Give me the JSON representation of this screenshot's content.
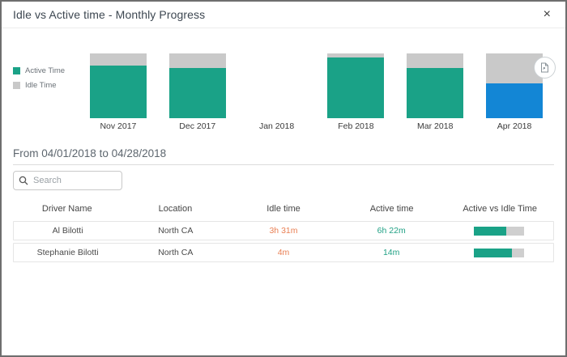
{
  "dialog": {
    "title": "Idle vs Active time - Monthly Progress",
    "close_label": "×"
  },
  "colors": {
    "active": "#1aa287",
    "idle": "#c9c9c9",
    "highlight_blue": "#1386d5",
    "idle_text": "#e97f53",
    "active_text": "#21a185"
  },
  "chart_data": {
    "type": "bar",
    "stacked": true,
    "normalized": "percent_of_month_total",
    "title": "Idle vs Active time - Monthly Progress",
    "categories": [
      "Nov 2017",
      "Dec 2017",
      "Jan 2018",
      "Feb 2018",
      "Mar 2018",
      "Apr 2018"
    ],
    "series": [
      {
        "name": "Active Time",
        "values": [
          81,
          78,
          0,
          94,
          78,
          54
        ]
      },
      {
        "name": "Idle Time",
        "values": [
          19,
          22,
          0,
          6,
          22,
          46
        ]
      }
    ],
    "highlighted_category": "Apr 2018",
    "legend_position": "left",
    "grid": false,
    "xlabel": "",
    "ylabel": ""
  },
  "legend": {
    "items": [
      {
        "label": "Active Time",
        "color": "#1aa287"
      },
      {
        "label": "Idle Time",
        "color": "#c9c9c9"
      }
    ]
  },
  "toolbar": {
    "export_icon": "export-chart"
  },
  "filter": {
    "range_label": "From 04/01/2018 to 04/28/2018"
  },
  "search": {
    "placeholder": "Search",
    "value": ""
  },
  "table": {
    "headers": [
      "Driver Name",
      "Location",
      "Idle time",
      "Active time",
      "Active vs Idle Time"
    ],
    "rows": [
      {
        "driver": "Al Bilotti",
        "location": "North CA",
        "idle": "3h 31m",
        "active": "6h 22m",
        "active_pct": 64
      },
      {
        "driver": "Stephanie Bilotti",
        "location": "North CA",
        "idle": "4m",
        "active": "14m",
        "active_pct": 75
      }
    ]
  }
}
